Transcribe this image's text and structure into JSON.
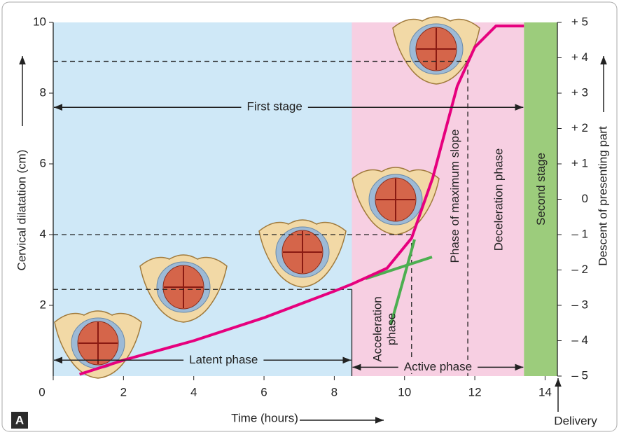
{
  "chart_data": {
    "type": "line",
    "x": [
      0.75,
      2,
      4,
      6,
      8,
      8.5,
      9.5,
      10.2,
      10.8,
      11.5,
      12,
      12.6,
      13.4
    ],
    "values": [
      0.05,
      0.45,
      1.0,
      1.65,
      2.4,
      2.6,
      3.05,
      3.9,
      5.6,
      8.2,
      9.3,
      9.9,
      9.9
    ],
    "color": "#e6007e",
    "y_label": "Cervical dilatation (cm)",
    "y2_label": "Descent of presenting part",
    "x_label": "Time (hours)",
    "x_end_label": "Delivery",
    "panel_label": "A",
    "xlim": [
      0,
      14.35
    ],
    "ylim": [
      0,
      10
    ],
    "y2lim": [
      -5,
      5
    ],
    "xticks": [
      0,
      2,
      4,
      6,
      8,
      10,
      12,
      14
    ],
    "yticks": [
      2,
      4,
      6,
      8,
      10
    ],
    "y2ticks": [
      {
        "value": 5,
        "label": "+ 5"
      },
      {
        "value": 4,
        "label": "+ 4"
      },
      {
        "value": 3,
        "label": "+ 3"
      },
      {
        "value": 2,
        "label": "+ 2"
      },
      {
        "value": 1,
        "label": "+ 1"
      },
      0,
      {
        "value": -1,
        "label": "– 1"
      },
      {
        "value": -2,
        "label": "– 2"
      },
      {
        "value": -3,
        "label": "– 3"
      },
      {
        "value": -4,
        "label": "– 4"
      },
      {
        "value": -5,
        "label": "– 5"
      }
    ],
    "regions": [
      {
        "start": 0,
        "end": 8.5,
        "color": "#cfe8f7"
      },
      {
        "start": 8.5,
        "end": 13.4,
        "color": "#f7cfe2"
      },
      {
        "start": 13.4,
        "end": 14.35,
        "color": "#9ccc7c"
      }
    ],
    "reference_lines": [
      {
        "y": 8.9,
        "x_end": 11.8
      },
      {
        "y": 4.0,
        "x_end": 10.2
      },
      {
        "y": 2.45,
        "x_end": 8.5
      }
    ],
    "spans": [
      {
        "label": "First stage",
        "start": 0,
        "end": 13.4,
        "y": 7.6
      },
      {
        "label": "Latent phase",
        "start": 0,
        "end": 8.5,
        "y": 0.45
      },
      {
        "label": "Active phase",
        "start": 8.5,
        "end": 13.4,
        "y": 0.25
      }
    ],
    "vertical_labels": [
      {
        "lines": [
          "Acceleration",
          "phase"
        ],
        "x": 9.45
      },
      {
        "lines": [
          "Phase of maximum slope"
        ],
        "x": 11.45
      },
      {
        "lines": [
          "Deceleration phase"
        ],
        "x": 12.7
      },
      {
        "lines": [
          "Second stage"
        ],
        "x": 13.9
      }
    ]
  }
}
